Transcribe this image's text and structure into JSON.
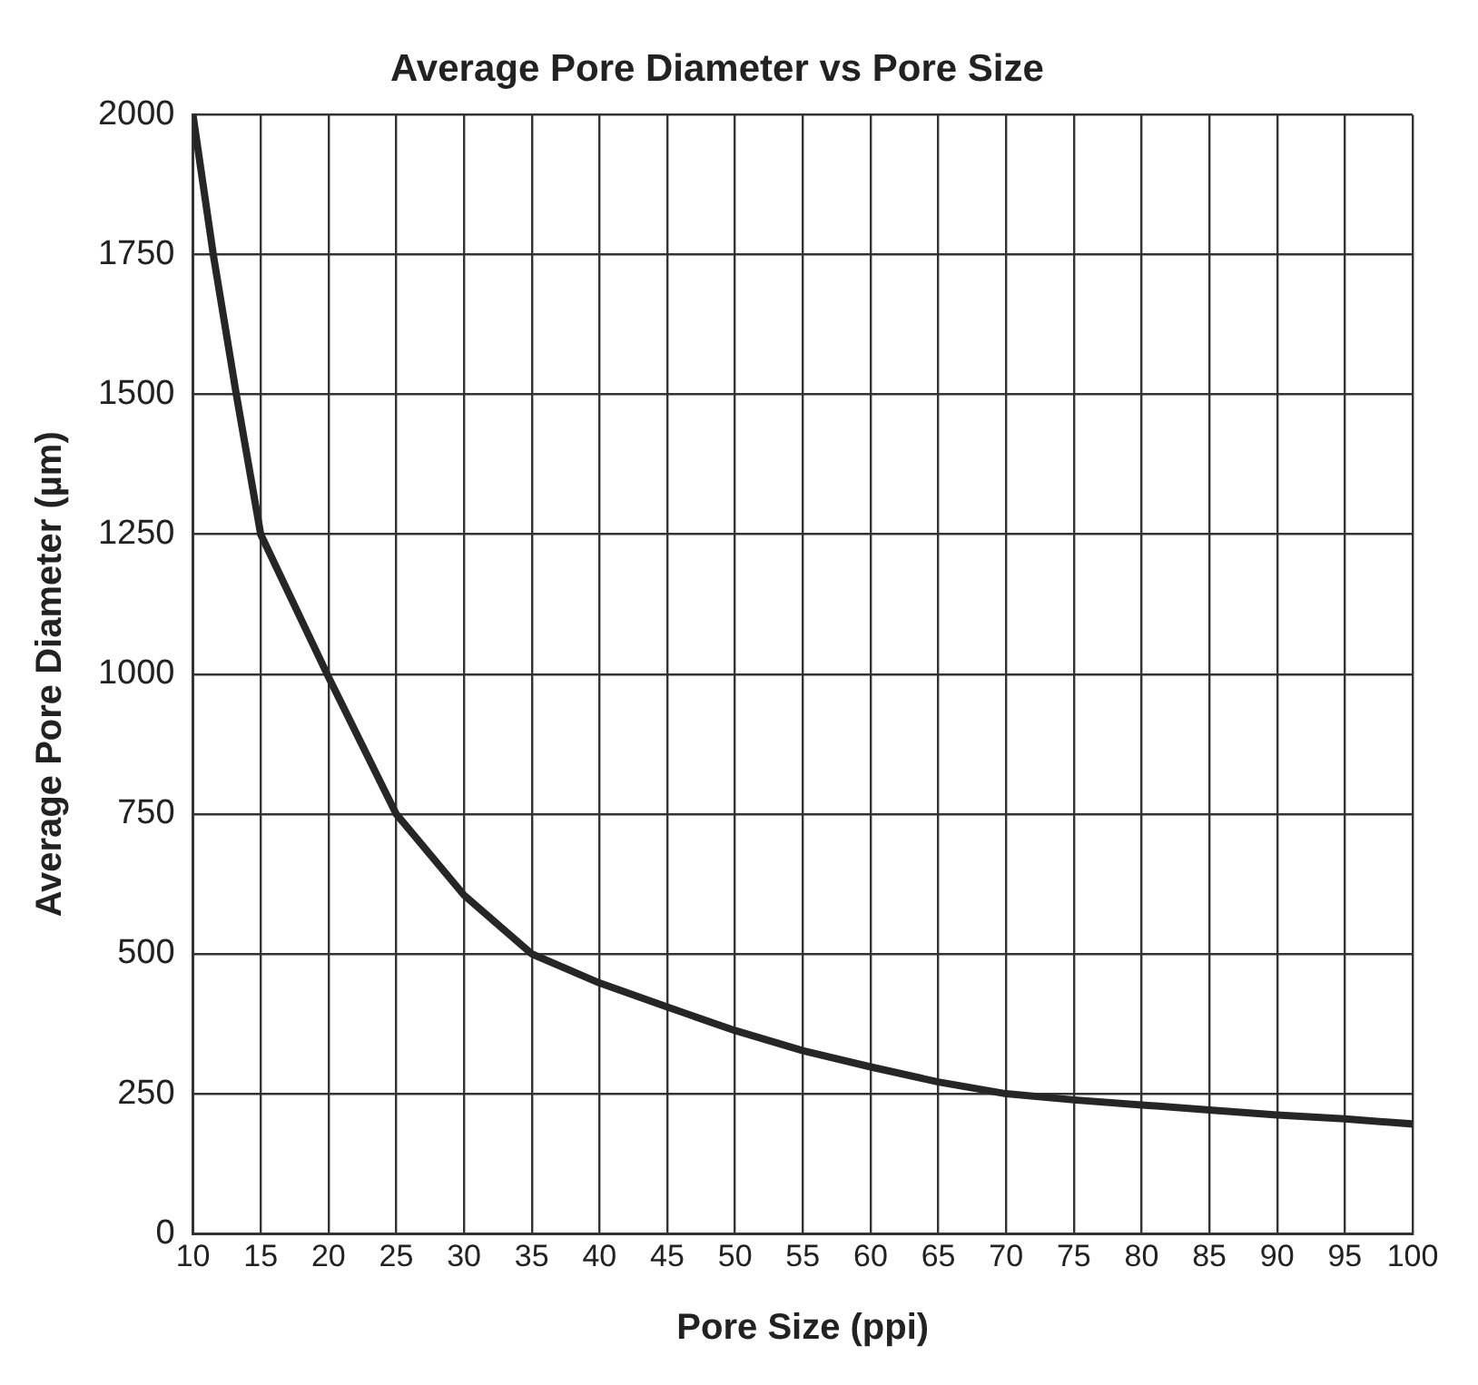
{
  "chart_data": {
    "type": "line",
    "title": "Average Pore Diameter vs Pore Size",
    "xlabel": "Pore Size (ppi)",
    "ylabel": "Average Pore Diameter (µm)",
    "x": [
      10,
      11.5,
      13.2,
      15,
      20,
      25,
      30,
      35,
      40,
      45,
      50,
      55,
      60,
      65,
      70,
      75,
      80,
      85,
      90,
      95,
      100
    ],
    "series": [
      {
        "color": "#262626",
        "values": [
          2000,
          1750,
          1500,
          1250,
          995,
          750,
          605,
          500,
          448,
          405,
          363,
          327,
          298,
          271,
          250,
          239,
          230,
          221,
          212,
          205,
          196
        ]
      }
    ],
    "xlim": [
      10,
      100
    ],
    "xticks": [
      10,
      15,
      20,
      25,
      30,
      35,
      40,
      45,
      50,
      55,
      60,
      65,
      70,
      75,
      80,
      85,
      90,
      95,
      100
    ],
    "ylim": [
      0,
      2000
    ],
    "yticks": [
      0,
      250,
      500,
      750,
      1000,
      1250,
      1500,
      1750,
      2000
    ],
    "grid": true,
    "legend": false,
    "marker": "none",
    "line_style": "solid"
  }
}
